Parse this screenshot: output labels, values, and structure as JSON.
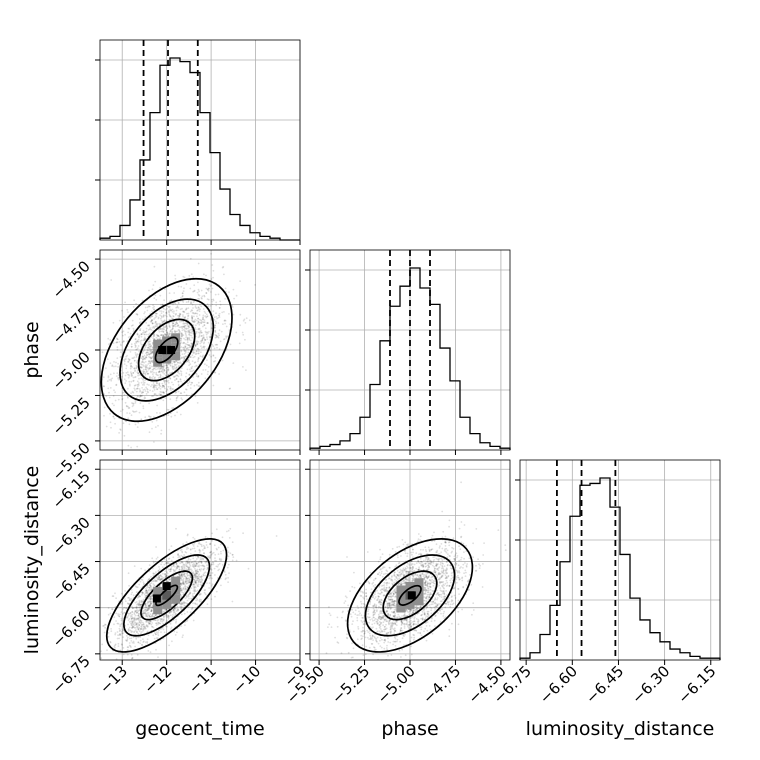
{
  "chart_data": {
    "type": "corner",
    "params": [
      {
        "name": "geocent_time",
        "xlabel": "geocent_time",
        "ylabel": "",
        "range": [
          -13.5,
          -9.0
        ],
        "ticks": [
          -13,
          -12,
          -11,
          -10,
          -9
        ],
        "tick_labels": [
          "−13",
          "−12",
          "−11",
          "−10",
          "−9"
        ],
        "quantiles": [
          -12.52,
          -11.97,
          -11.3
        ],
        "hist_bins": [
          1,
          2,
          8,
          22,
          44,
          70,
          96,
          100,
          98,
          92,
          70,
          48,
          28,
          14,
          8,
          4,
          2,
          1,
          0,
          0
        ]
      },
      {
        "name": "phase",
        "xlabel": "phase",
        "ylabel": "phase",
        "range": [
          -5.55,
          -4.45
        ],
        "ticks": [
          -5.5,
          -5.25,
          -5.0,
          -4.75,
          -4.5
        ],
        "tick_labels": [
          "−5.50",
          "−5.25",
          "−5.00",
          "−4.75",
          "−4.50"
        ],
        "quantiles": [
          -5.11,
          -5.0,
          -4.89
        ],
        "hist_bins": [
          1,
          2,
          3,
          5,
          9,
          18,
          36,
          60,
          79,
          90,
          100,
          89,
          80,
          56,
          38,
          18,
          9,
          4,
          2,
          1
        ]
      },
      {
        "name": "luminosity_distance",
        "xlabel": "luminosity_distance",
        "ylabel": "luminosity_distance",
        "range": [
          -6.77,
          -6.12
        ],
        "ticks": [
          -6.75,
          -6.6,
          -6.45,
          -6.3,
          -6.15
        ],
        "tick_labels": [
          "−6.75",
          "−6.60",
          "−6.45",
          "−6.30",
          "−6.15"
        ],
        "quantiles": [
          -6.65,
          -6.57,
          -6.46
        ],
        "hist_bins": [
          1,
          4,
          14,
          30,
          54,
          79,
          96,
          97,
          100,
          84,
          58,
          34,
          22,
          15,
          10,
          6,
          4,
          2,
          1,
          1
        ]
      }
    ],
    "pairs": [
      {
        "x": "geocent_time",
        "y": "phase",
        "center": [
          -12.0,
          -5.0
        ],
        "sd": [
          0.6,
          0.16
        ],
        "corr": 0.45,
        "peak": [
          [
            -12.1,
            -5.0
          ],
          [
            -11.9,
            -5.0
          ]
        ]
      },
      {
        "x": "geocent_time",
        "y": "luminosity_distance",
        "center": [
          -12.0,
          -6.56
        ],
        "sd": [
          0.55,
          0.075
        ],
        "corr": 0.72,
        "peak": [
          [
            -12.22,
            -6.57
          ],
          [
            -12.0,
            -6.53
          ]
        ]
      },
      {
        "x": "phase",
        "y": "luminosity_distance",
        "center": [
          -5.0,
          -6.56
        ],
        "sd": [
          0.14,
          0.075
        ],
        "corr": 0.5,
        "peak": [
          [
            -4.99,
            -6.56
          ]
        ]
      }
    ],
    "grid": true,
    "hist_peaks_normalized": true
  }
}
